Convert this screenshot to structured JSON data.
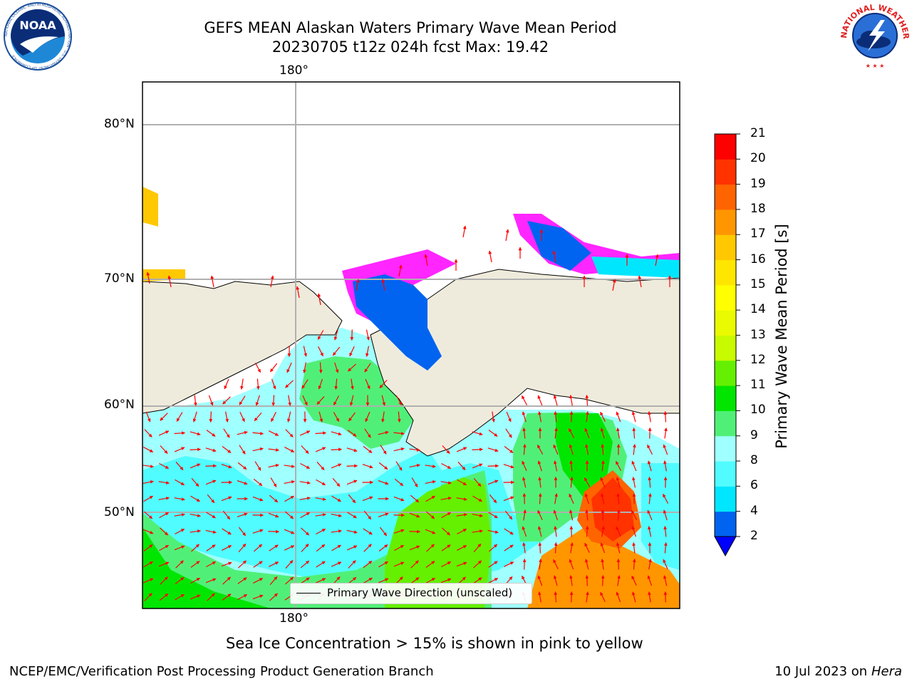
{
  "header": {
    "title_line1": "GEFS MEAN Alaskan Waters Primary Wave Mean Period",
    "title_line2": "20230705 t12z 024h fcst   Max: 19.42"
  },
  "logos": {
    "noaa": {
      "text": "NOAA",
      "ring_text": "NATIONAL OCEANIC AND ATMOSPHERIC ADMINISTRATION · U.S. DEPARTMENT OF COMMERCE"
    },
    "nws": {
      "ring_text": "NATIONAL WEATHER SERVICE"
    }
  },
  "map": {
    "lat_labels": [
      "80°N",
      "70°N",
      "60°N",
      "50°N"
    ],
    "lon_label_top": "180°",
    "lon_label_bottom": "180°",
    "legend_text": "Primary Wave Direction (unscaled)",
    "land_color": "#efebdc",
    "arrow_color": "#ff0000"
  },
  "colorbar": {
    "label": "Primary Wave Mean Period [s]",
    "ticks": [
      "2",
      "4",
      "6",
      "8",
      "9",
      "10",
      "11",
      "12",
      "13",
      "14",
      "15",
      "16",
      "17",
      "18",
      "19",
      "20",
      "21"
    ],
    "colors": [
      "#0064f0",
      "#00e6ff",
      "#50fcff",
      "#a0ffff",
      "#50f078",
      "#00e600",
      "#64f000",
      "#c8fa00",
      "#eafa00",
      "#ffff00",
      "#ffe600",
      "#ffc800",
      "#ff9600",
      "#ff6400",
      "#ff3200",
      "#ff0000"
    ],
    "extend_color": "#0000ff"
  },
  "captions": {
    "sea_ice": "Sea Ice Concentration > 15% is shown in pink to yellow"
  },
  "footer": {
    "left": "NCEP/EMC/Verification Post Processing Product Generation Branch",
    "right_prefix": "10 Jul 2023 on ",
    "right_host": "Hera"
  }
}
